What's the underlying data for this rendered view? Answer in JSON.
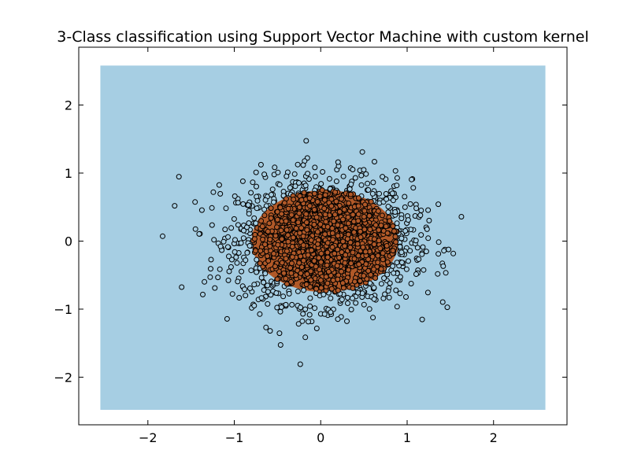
{
  "chart_data": {
    "type": "scatter",
    "title": "3-Class classification using Support Vector Machine with custom kernel",
    "xlabel": "",
    "ylabel": "",
    "xlim": [
      -2.8,
      2.85
    ],
    "ylim": [
      -2.7,
      2.85
    ],
    "grid": false,
    "x_ticks": [
      -2,
      -1,
      0,
      1,
      2
    ],
    "y_ticks": [
      -2,
      -1,
      0,
      1,
      2
    ],
    "x_tick_labels": [
      "−2",
      "−1",
      "0",
      "1",
      "2"
    ],
    "y_tick_labels": [
      "−2",
      "−1",
      "0",
      "1",
      "2"
    ],
    "decision_region": {
      "x_range": [
        -2.55,
        2.6
      ],
      "y_range": [
        -2.48,
        2.58
      ],
      "background_class_color": "#a6cee3",
      "center_class_color": "#b15928",
      "center_region": {
        "center": [
          0.05,
          0.0
        ],
        "radius_x": 0.85,
        "radius_y": 0.75
      }
    },
    "scatter": {
      "n_points": 2000,
      "distribution": "gaussian",
      "center": [
        0.05,
        0.0
      ],
      "spread": [
        0.5,
        0.45
      ],
      "class_boundary_radius": 0.75,
      "inner_class_color": "#b15928",
      "outer_class_color": "#a6cee3",
      "edge_color": "#000000"
    }
  }
}
